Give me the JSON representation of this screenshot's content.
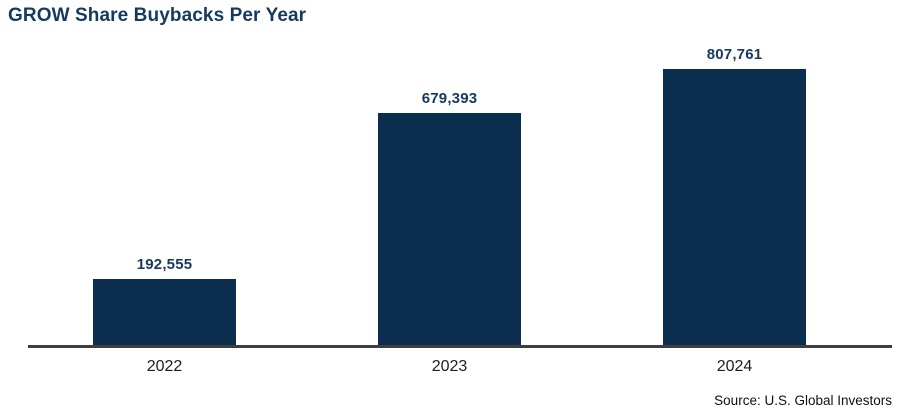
{
  "page": {
    "title": "GROW Share Buybacks Per Year",
    "source": "Source: U.S. Global Investors"
  },
  "chart_data": {
    "type": "bar",
    "title": "GROW Share Buybacks Per Year",
    "categories": [
      "2022",
      "2023",
      "2024"
    ],
    "values": [
      192555,
      679393,
      807761
    ],
    "value_labels": [
      "192,555",
      "679,393",
      "807,761"
    ],
    "xlabel": "",
    "ylabel": "",
    "ylim": [
      0,
      807761
    ],
    "grid": false,
    "legend": false,
    "y_axis_shown": false,
    "bar_color": "#0c2e4e",
    "value_label_color": "#17395e",
    "axis_line_color": "#3e3e40",
    "tick_label_color": "#1d1d1f",
    "source": "Source: U.S. Global Investors"
  }
}
